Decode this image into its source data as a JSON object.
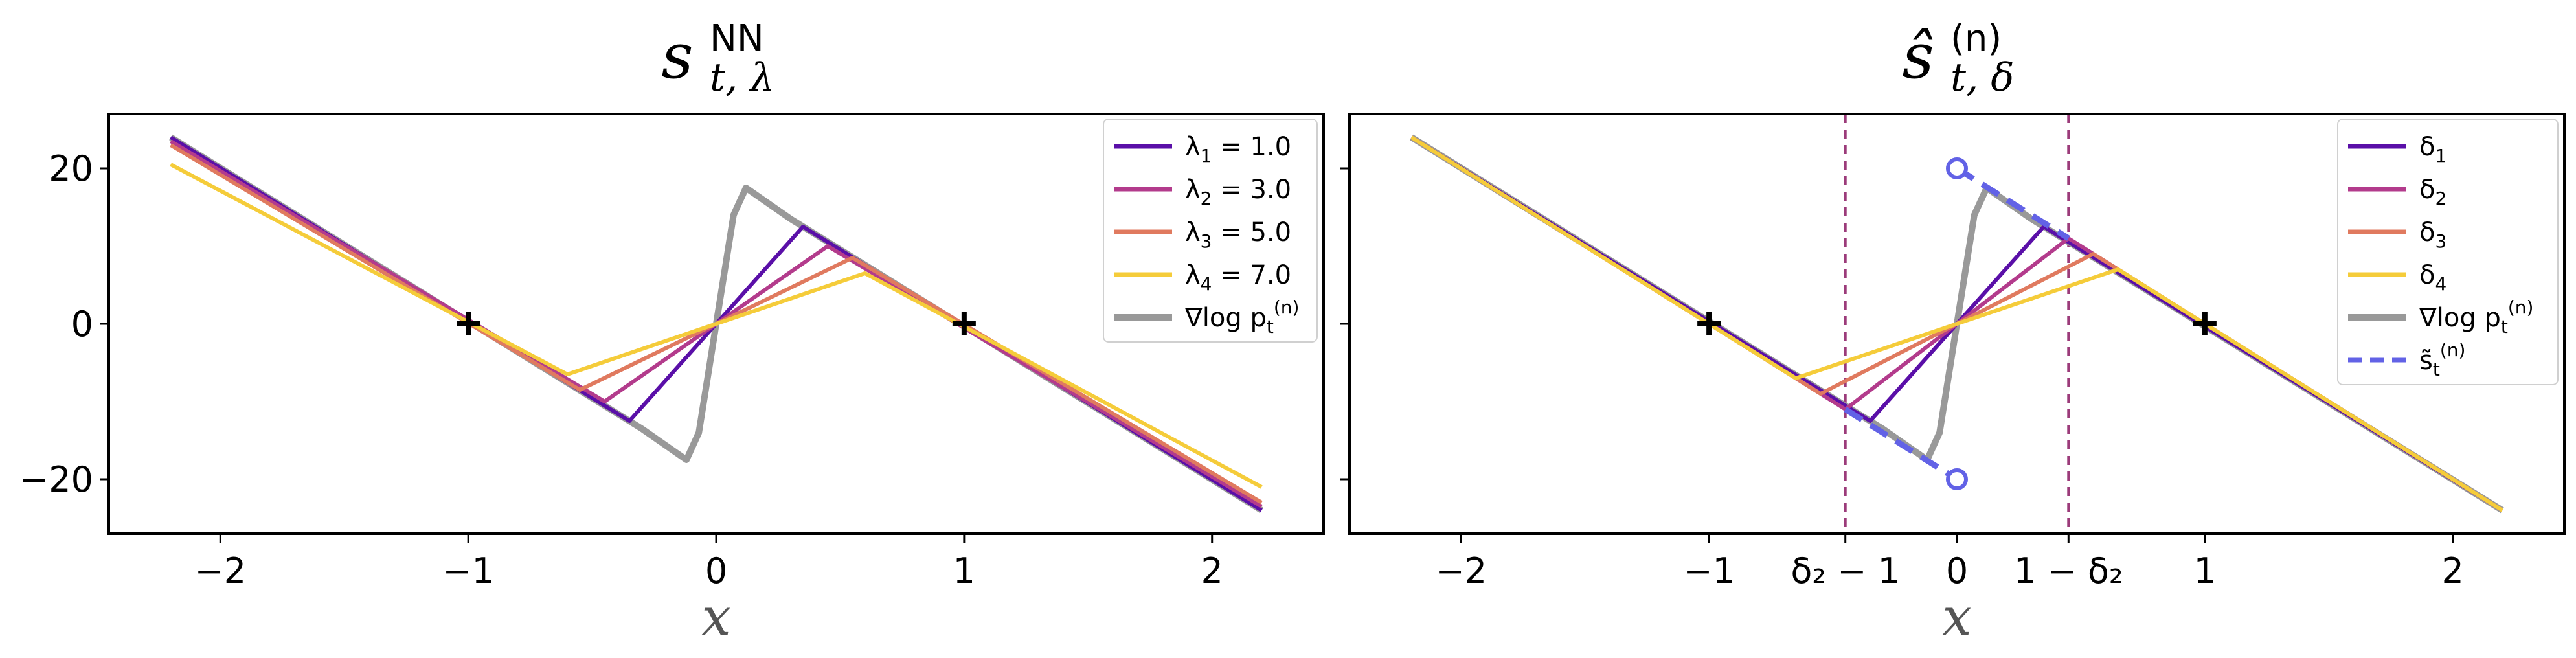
{
  "chart_data": [
    {
      "type": "line",
      "title": "s",
      "title_sub": "t, λ",
      "title_sup": "NN",
      "xlabel": "x",
      "xlim": [
        -2.45,
        2.45
      ],
      "ylim": [
        -27,
        27
      ],
      "xticks": [
        -2,
        -1,
        0,
        1,
        2
      ],
      "xtick_labels": [
        "−2",
        "−1",
        "0",
        "1",
        "2"
      ],
      "yticks": [
        20,
        0,
        -20
      ],
      "ytick_labels": [
        "20",
        "0",
        "−20"
      ],
      "legend_position": "top-right",
      "markers": [
        {
          "x": -1,
          "y": 0,
          "symbol": "+"
        },
        {
          "x": 1,
          "y": 0,
          "symbol": "+"
        }
      ],
      "series": [
        {
          "name": "λ",
          "name_sub": "1",
          "name_value": " = 1.0",
          "color": "#5a0fa8",
          "x": [
            -2.2,
            -0.35,
            0.35,
            2.2
          ],
          "y": [
            24,
            -12.5,
            12.5,
            -24
          ]
        },
        {
          "name": "λ",
          "name_sub": "2",
          "name_value": " = 3.0",
          "color": "#b33b8c",
          "x": [
            -2.2,
            -0.45,
            0.45,
            2.2
          ],
          "y": [
            23.5,
            -10,
            10,
            -23.5
          ]
        },
        {
          "name": "λ",
          "name_sub": "3",
          "name_value": " = 5.0",
          "color": "#e07a5f",
          "x": [
            -2.2,
            -0.55,
            0.55,
            2.2
          ],
          "y": [
            23,
            -8.5,
            8.5,
            -23
          ]
        },
        {
          "name": "λ",
          "name_sub": "4",
          "name_value": " = 7.0",
          "color": "#f5cc3a",
          "x": [
            -2.2,
            -0.6,
            0.6,
            2.2
          ],
          "y": [
            20.5,
            -6.5,
            6.5,
            -21
          ]
        },
        {
          "name": "∇log p",
          "name_sub": "t",
          "name_sup": "(n)",
          "color": "#999999",
          "x": [
            -2.2,
            -0.3,
            -0.12,
            -0.07,
            0,
            0.07,
            0.12,
            0.3,
            2.2
          ],
          "y": [
            24,
            -13.5,
            -17.5,
            -14,
            0,
            14,
            17.5,
            13.5,
            -24
          ]
        }
      ]
    },
    {
      "type": "line",
      "title": "ŝ",
      "title_sub": "t, δ",
      "title_sup": "(n)",
      "xlabel": "x",
      "xlim": [
        -2.45,
        2.45
      ],
      "ylim": [
        -27,
        27
      ],
      "xticks": [
        -2,
        -1,
        -0.45,
        0,
        0.45,
        1,
        2
      ],
      "xtick_labels": [
        "−2",
        "−1",
        "δ₂ − 1",
        "0",
        "1 − δ₂",
        "1",
        "2"
      ],
      "yticks": [
        20,
        0,
        -20
      ],
      "ytick_labels": [
        "",
        "",
        ""
      ],
      "vlines": [
        -0.45,
        0.45
      ],
      "vline_color": "#9b3b7a",
      "legend_position": "top-right",
      "markers": [
        {
          "x": -1,
          "y": 0,
          "symbol": "+"
        },
        {
          "x": 1,
          "y": 0,
          "symbol": "+"
        }
      ],
      "series": [
        {
          "name": "δ",
          "name_sub": "1",
          "color": "#5a0fa8",
          "x": [
            -2.2,
            -0.35,
            0.35,
            2.2
          ],
          "y": [
            24,
            -12.5,
            12.5,
            -24
          ]
        },
        {
          "name": "δ",
          "name_sub": "2",
          "color": "#b33b8c",
          "x": [
            -2.2,
            -0.45,
            0.45,
            2.2
          ],
          "y": [
            24,
            -11,
            11,
            -24
          ]
        },
        {
          "name": "δ",
          "name_sub": "3",
          "color": "#e07a5f",
          "x": [
            -2.2,
            -0.55,
            0.55,
            2.2
          ],
          "y": [
            24,
            -9,
            9,
            -24
          ]
        },
        {
          "name": "δ",
          "name_sub": "4",
          "color": "#f5cc3a",
          "x": [
            -2.2,
            -0.65,
            0.65,
            2.2
          ],
          "y": [
            24,
            -7,
            7,
            -24
          ]
        },
        {
          "name": "∇log p",
          "name_sub": "t",
          "name_sup": "(n)",
          "color": "#999999",
          "x": [
            -2.2,
            -0.3,
            -0.12,
            -0.07,
            0,
            0.07,
            0.12,
            0.3,
            2.2
          ],
          "y": [
            24,
            -13.5,
            -17.5,
            -14,
            0,
            14,
            17.5,
            13.5,
            -24
          ]
        },
        {
          "name": "s̃",
          "name_sub": "t",
          "name_sup": "(n)",
          "color": "#6262e6",
          "dashed": true,
          "open_endpoints": true,
          "segments": [
            {
              "x": [
                -0.45,
                0
              ],
              "y": [
                -11,
                -20
              ]
            },
            {
              "x": [
                0,
                0.45
              ],
              "y": [
                20,
                11
              ]
            }
          ]
        }
      ]
    }
  ]
}
